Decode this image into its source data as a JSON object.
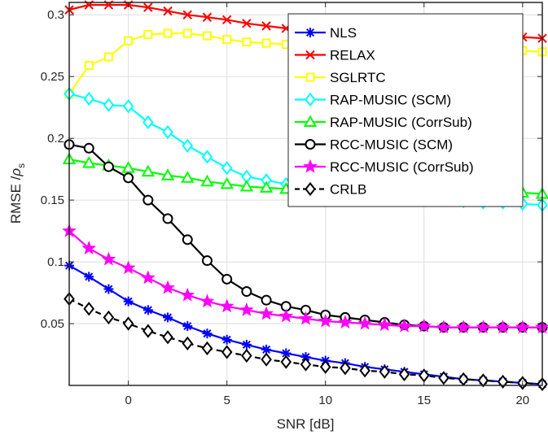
{
  "chart_data": {
    "type": "line",
    "xlabel": "SNR [dB]",
    "ylabel": "RMSE /",
    "ylabel_symbol": "ρ",
    "ylabel_subscript": "s",
    "xlim": [
      -3,
      21
    ],
    "ylim": [
      0,
      0.31
    ],
    "xticks": [
      "0",
      "5",
      "10",
      "15",
      "20"
    ],
    "xtick_values": [
      0,
      5,
      10,
      15,
      20
    ],
    "yticks": [
      "0.05",
      "0.1",
      "0.15",
      "0.2",
      "0.25",
      "0.3"
    ],
    "ytick_values": [
      0.05,
      0.1,
      0.15,
      0.2,
      0.25,
      0.3
    ],
    "grid": true,
    "legend_position": "top-right",
    "x": [
      -3,
      -2,
      -1,
      0,
      1,
      2,
      3,
      4,
      5,
      6,
      7,
      8,
      9,
      10,
      11,
      12,
      13,
      14,
      15,
      16,
      17,
      18,
      19,
      20,
      21
    ],
    "series": [
      {
        "name": "NLS",
        "color": "#0000ff",
        "marker": "asterisk",
        "values": [
          0.097,
          0.088,
          0.078,
          0.068,
          0.061,
          0.055,
          0.048,
          0.042,
          0.037,
          0.033,
          0.029,
          0.026,
          0.023,
          0.02,
          0.018,
          0.015,
          0.013,
          0.011,
          0.009,
          0.007,
          0.005,
          0.004,
          0.003,
          0.002,
          0.001
        ]
      },
      {
        "name": "RELAX",
        "color": "#ff0000",
        "marker": "x",
        "values": [
          0.304,
          0.308,
          0.308,
          0.308,
          0.306,
          0.303,
          0.3,
          0.298,
          0.296,
          0.293,
          0.291,
          0.289,
          0.288,
          0.287,
          0.287,
          0.286,
          0.286,
          0.285,
          0.285,
          0.284,
          0.284,
          0.283,
          0.283,
          0.282,
          0.281
        ]
      },
      {
        "name": "SGLRTC",
        "color": "#ffff00",
        "marker": "square",
        "values": [
          0.236,
          0.259,
          0.266,
          0.279,
          0.284,
          0.285,
          0.285,
          0.283,
          0.28,
          0.278,
          0.277,
          0.276,
          0.275,
          0.275,
          0.274,
          0.274,
          0.273,
          0.273,
          0.273,
          0.272,
          0.272,
          0.272,
          0.271,
          0.271,
          0.27
        ]
      },
      {
        "name": "RAP-MUSIC (SCM)",
        "color": "#00ffff",
        "marker": "diamond",
        "values": [
          0.236,
          0.232,
          0.227,
          0.226,
          0.213,
          0.205,
          0.194,
          0.185,
          0.176,
          0.169,
          0.166,
          0.163,
          0.16,
          0.157,
          0.155,
          0.153,
          0.152,
          0.151,
          0.15,
          0.15,
          0.149,
          0.148,
          0.148,
          0.147,
          0.146
        ]
      },
      {
        "name": "RAP-MUSIC (CorrSub)",
        "color": "#00ff00",
        "marker": "triangle",
        "values": [
          0.183,
          0.18,
          0.178,
          0.176,
          0.173,
          0.17,
          0.168,
          0.165,
          0.163,
          0.161,
          0.16,
          0.159,
          0.158,
          0.158,
          0.158,
          0.158,
          0.158,
          0.158,
          0.158,
          0.157,
          0.157,
          0.157,
          0.157,
          0.156,
          0.155
        ]
      },
      {
        "name": "RCC-MUSIC (SCM)",
        "color": "#000000",
        "marker": "circle",
        "values": [
          0.195,
          0.192,
          0.177,
          0.168,
          0.15,
          0.135,
          0.118,
          0.101,
          0.086,
          0.076,
          0.069,
          0.064,
          0.061,
          0.057,
          0.055,
          0.053,
          0.051,
          0.049,
          0.048,
          0.047,
          0.047,
          0.047,
          0.047,
          0.047,
          0.047
        ]
      },
      {
        "name": "RCC-MUSIC (CorrSub)",
        "color": "#ff00ff",
        "marker": "star",
        "values": [
          0.125,
          0.111,
          0.102,
          0.095,
          0.087,
          0.079,
          0.073,
          0.068,
          0.064,
          0.061,
          0.058,
          0.056,
          0.054,
          0.052,
          0.051,
          0.05,
          0.049,
          0.048,
          0.048,
          0.047,
          0.047,
          0.047,
          0.047,
          0.047,
          0.047
        ]
      },
      {
        "name": "CRLB",
        "color": "#000000",
        "marker": "diamond",
        "dash": "dashed",
        "values": [
          0.07,
          0.062,
          0.055,
          0.05,
          0.044,
          0.039,
          0.034,
          0.03,
          0.027,
          0.024,
          0.021,
          0.019,
          0.017,
          0.015,
          0.014,
          0.012,
          0.011,
          0.009,
          0.008,
          0.006,
          0.005,
          0.004,
          0.003,
          0.002,
          0.001
        ]
      }
    ]
  }
}
